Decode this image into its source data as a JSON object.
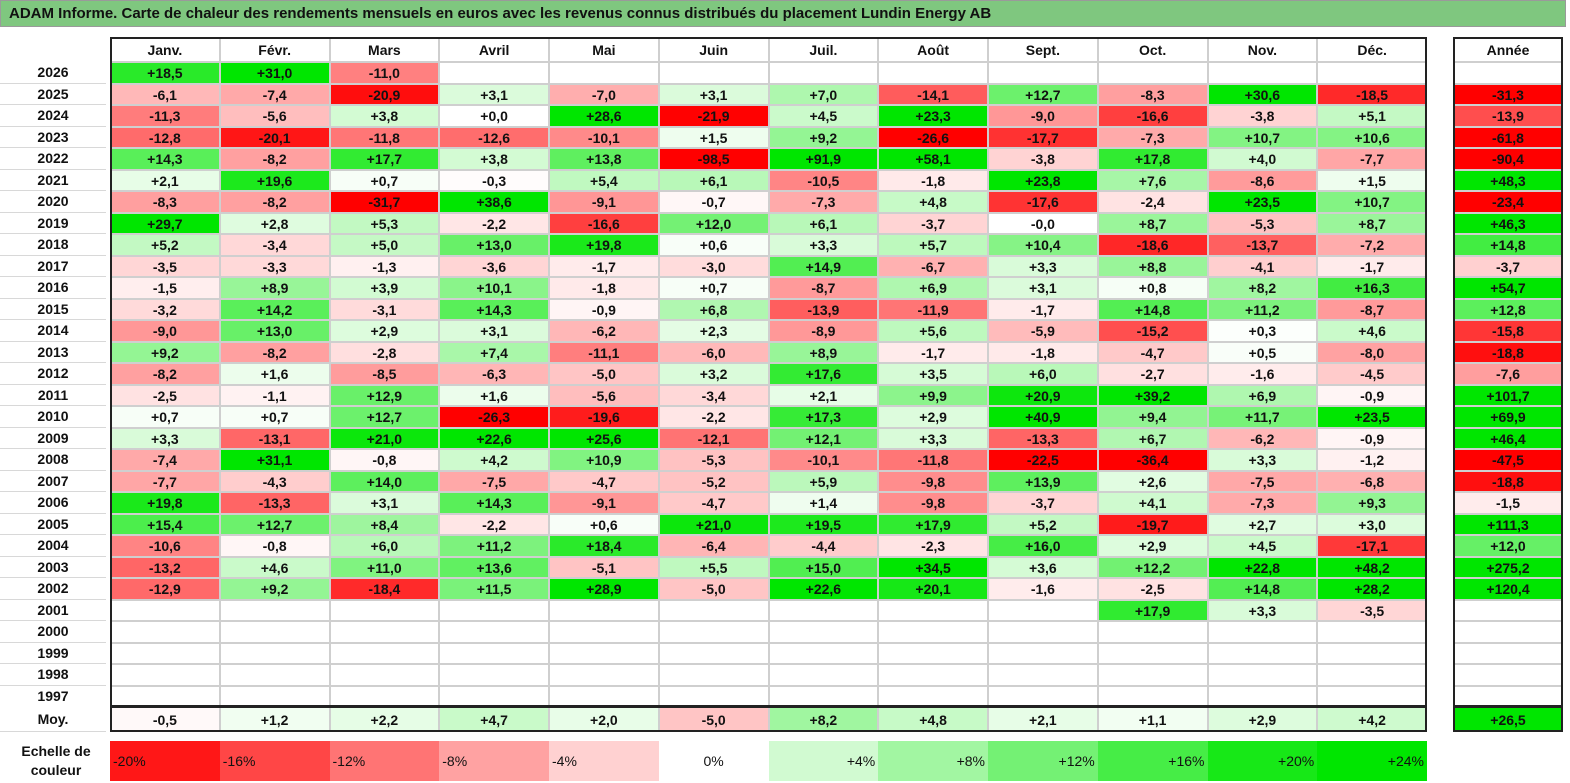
{
  "title": "ADAM Informe. Carte de chaleur des rendements mensuels en euros avec les revenus connus distribués du placement Lundin Energy AB",
  "chart_data": {
    "type": "heatmap",
    "title": "ADAM Informe. Carte de chaleur des rendements mensuels en euros avec les revenus connus distribués du placement Lundin Energy AB",
    "months": [
      "Janv.",
      "Févr.",
      "Mars",
      "Avril",
      "Mai",
      "Juin",
      "Juil.",
      "Août",
      "Sept.",
      "Oct.",
      "Nov.",
      "Déc."
    ],
    "year_header": "Année",
    "rows": [
      {
        "year": "2026",
        "values": [
          "+18,5",
          "+31,0",
          "-11,0",
          "",
          "",
          "",
          "",
          "",
          "",
          "",
          "",
          ""
        ],
        "annual": ""
      },
      {
        "year": "2025",
        "values": [
          "-6,1",
          "-7,4",
          "-20,9",
          "+3,1",
          "-7,0",
          "+3,1",
          "+7,0",
          "-14,1",
          "+12,7",
          "-8,3",
          "+30,6",
          "-18,5"
        ],
        "annual": "-31,3"
      },
      {
        "year": "2024",
        "values": [
          "-11,3",
          "-5,6",
          "+3,8",
          "+0,0",
          "+28,6",
          "-21,9",
          "+4,5",
          "+23,3",
          "-9,0",
          "-16,6",
          "-3,8",
          "+5,1"
        ],
        "annual": "-13,9"
      },
      {
        "year": "2023",
        "values": [
          "-12,8",
          "-20,1",
          "-11,8",
          "-12,6",
          "-10,1",
          "+1,5",
          "+9,2",
          "-26,6",
          "-17,7",
          "-7,3",
          "+10,7",
          "+10,6"
        ],
        "annual": "-61,8"
      },
      {
        "year": "2022",
        "values": [
          "+14,3",
          "-8,2",
          "+17,7",
          "+3,8",
          "+13,8",
          "-98,5",
          "+91,9",
          "+58,1",
          "-3,8",
          "+17,8",
          "+4,0",
          "-7,7"
        ],
        "annual": "-90,4"
      },
      {
        "year": "2021",
        "values": [
          "+2,1",
          "+19,6",
          "+0,7",
          "-0,3",
          "+5,4",
          "+6,1",
          "-10,5",
          "-1,8",
          "+23,8",
          "+7,6",
          "-8,6",
          "+1,5"
        ],
        "annual": "+48,3"
      },
      {
        "year": "2020",
        "values": [
          "-8,3",
          "-8,2",
          "-31,7",
          "+38,6",
          "-9,1",
          "-0,7",
          "-7,3",
          "+4,8",
          "-17,6",
          "-2,4",
          "+23,5",
          "+10,7"
        ],
        "annual": "-23,4"
      },
      {
        "year": "2019",
        "values": [
          "+29,7",
          "+2,8",
          "+5,3",
          "-2,2",
          "-16,6",
          "+12,0",
          "+6,1",
          "-3,7",
          "-0,0",
          "+8,7",
          "-5,3",
          "+8,7"
        ],
        "annual": "+46,3"
      },
      {
        "year": "2018",
        "values": [
          "+5,2",
          "-3,4",
          "+5,0",
          "+13,0",
          "+19,8",
          "+0,6",
          "+3,3",
          "+5,7",
          "+10,4",
          "-18,6",
          "-13,7",
          "-7,2"
        ],
        "annual": "+14,8"
      },
      {
        "year": "2017",
        "values": [
          "-3,5",
          "-3,3",
          "-1,3",
          "-3,6",
          "-1,7",
          "-3,0",
          "+14,9",
          "-6,7",
          "+3,3",
          "+8,8",
          "-4,1",
          "-1,7"
        ],
        "annual": "-3,7"
      },
      {
        "year": "2016",
        "values": [
          "-1,5",
          "+8,9",
          "+3,9",
          "+10,1",
          "-1,8",
          "+0,7",
          "-8,7",
          "+6,9",
          "+3,1",
          "+0,8",
          "+8,2",
          "+16,3"
        ],
        "annual": "+54,7"
      },
      {
        "year": "2015",
        "values": [
          "-3,2",
          "+14,2",
          "-3,1",
          "+14,3",
          "-0,9",
          "+6,8",
          "-13,9",
          "-11,9",
          "-1,7",
          "+14,8",
          "+11,2",
          "-8,7"
        ],
        "annual": "+12,8"
      },
      {
        "year": "2014",
        "values": [
          "-9,0",
          "+13,0",
          "+2,9",
          "+3,1",
          "-6,2",
          "+2,3",
          "-8,9",
          "+5,6",
          "-5,9",
          "-15,2",
          "+0,3",
          "+4,6"
        ],
        "annual": "-15,8"
      },
      {
        "year": "2013",
        "values": [
          "+9,2",
          "-8,2",
          "-2,8",
          "+7,4",
          "-11,1",
          "-6,0",
          "+8,9",
          "-1,7",
          "-1,8",
          "-4,7",
          "+0,5",
          "-8,0"
        ],
        "annual": "-18,8"
      },
      {
        "year": "2012",
        "values": [
          "-8,2",
          "+1,6",
          "-8,5",
          "-6,3",
          "-5,0",
          "+3,2",
          "+17,6",
          "+3,5",
          "+6,0",
          "-2,7",
          "-1,6",
          "-4,5"
        ],
        "annual": "-7,6"
      },
      {
        "year": "2011",
        "values": [
          "-2,5",
          "-1,1",
          "+12,9",
          "+1,6",
          "-5,6",
          "-3,4",
          "+2,1",
          "+9,9",
          "+20,9",
          "+39,2",
          "+6,9",
          "-0,9"
        ],
        "annual": "+101,7"
      },
      {
        "year": "2010",
        "values": [
          "+0,7",
          "+0,7",
          "+12,7",
          "-26,3",
          "-19,6",
          "-2,2",
          "+17,3",
          "+2,9",
          "+40,9",
          "+9,4",
          "+11,7",
          "+23,5"
        ],
        "annual": "+69,9"
      },
      {
        "year": "2009",
        "values": [
          "+3,3",
          "-13,1",
          "+21,0",
          "+22,6",
          "+25,6",
          "-12,1",
          "+12,1",
          "+3,3",
          "-13,3",
          "+6,7",
          "-6,2",
          "-0,9"
        ],
        "annual": "+46,4"
      },
      {
        "year": "2008",
        "values": [
          "-7,4",
          "+31,1",
          "-0,8",
          "+4,2",
          "+10,9",
          "-5,3",
          "-10,1",
          "-11,8",
          "-22,5",
          "-36,4",
          "+3,3",
          "-1,2"
        ],
        "annual": "-47,5"
      },
      {
        "year": "2007",
        "values": [
          "-7,7",
          "-4,3",
          "+14,0",
          "-7,5",
          "-4,7",
          "-5,2",
          "+5,9",
          "-9,8",
          "+13,9",
          "+2,6",
          "-7,5",
          "-6,8"
        ],
        "annual": "-18,8"
      },
      {
        "year": "2006",
        "values": [
          "+19,8",
          "-13,3",
          "+3,1",
          "+14,3",
          "-9,1",
          "-4,7",
          "+1,4",
          "-9,8",
          "-3,7",
          "+4,1",
          "-7,3",
          "+9,3"
        ],
        "annual": "-1,5"
      },
      {
        "year": "2005",
        "values": [
          "+15,4",
          "+12,7",
          "+8,4",
          "-2,2",
          "+0,6",
          "+21,0",
          "+19,5",
          "+17,9",
          "+5,2",
          "-19,7",
          "+2,7",
          "+3,0"
        ],
        "annual": "+111,3"
      },
      {
        "year": "2004",
        "values": [
          "-10,6",
          "-0,8",
          "+6,0",
          "+11,2",
          "+18,4",
          "-6,4",
          "-4,4",
          "-2,3",
          "+16,0",
          "+2,9",
          "+4,5",
          "-17,1"
        ],
        "annual": "+12,0"
      },
      {
        "year": "2003",
        "values": [
          "-13,2",
          "+4,6",
          "+11,0",
          "+13,6",
          "-5,1",
          "+5,5",
          "+15,0",
          "+34,5",
          "+3,6",
          "+12,2",
          "+22,8",
          "+48,2"
        ],
        "annual": "+275,2"
      },
      {
        "year": "2002",
        "values": [
          "-12,9",
          "+9,2",
          "-18,4",
          "+11,5",
          "+28,9",
          "-5,0",
          "+22,6",
          "+20,1",
          "-1,6",
          "-2,5",
          "+14,8",
          "+28,2"
        ],
        "annual": "+120,4"
      },
      {
        "year": "2001",
        "values": [
          "",
          "",
          "",
          "",
          "",
          "",
          "",
          "",
          "",
          "+17,9",
          "+3,3",
          "-3,5"
        ],
        "annual": ""
      },
      {
        "year": "2000",
        "values": [
          "",
          "",
          "",
          "",
          "",
          "",
          "",
          "",
          "",
          "",
          "",
          ""
        ],
        "annual": ""
      },
      {
        "year": "1999",
        "values": [
          "",
          "",
          "",
          "",
          "",
          "",
          "",
          "",
          "",
          "",
          "",
          ""
        ],
        "annual": ""
      },
      {
        "year": "1998",
        "values": [
          "",
          "",
          "",
          "",
          "",
          "",
          "",
          "",
          "",
          "",
          "",
          ""
        ],
        "annual": ""
      },
      {
        "year": "1997",
        "values": [
          "",
          "",
          "",
          "",
          "",
          "",
          "",
          "",
          "",
          "",
          "",
          ""
        ],
        "annual": ""
      }
    ],
    "average": {
      "label": "Moy.",
      "values": [
        "-0,5",
        "+1,2",
        "+2,2",
        "+4,7",
        "+2,0",
        "-5,0",
        "+8,2",
        "+4,8",
        "+2,1",
        "+1,1",
        "+2,9",
        "+4,2"
      ],
      "annual": "+26,5"
    },
    "color_scale": {
      "label": "Echelle de couleur",
      "steps": [
        "-20%",
        "-16%",
        "-12%",
        "-8%",
        "-4%",
        "0%",
        "+4%",
        "+8%",
        "+12%",
        "+16%",
        "+20%",
        "+24%"
      ],
      "step_values": [
        -20,
        -16,
        -12,
        -8,
        -4,
        0,
        4,
        8,
        12,
        16,
        20,
        24
      ],
      "colors": {
        "negative": "#ff0000",
        "neutral": "#ffffff",
        "positive": "#00e600"
      }
    }
  }
}
